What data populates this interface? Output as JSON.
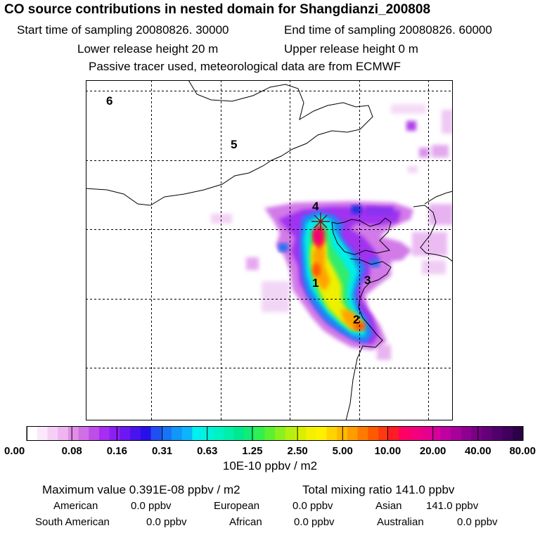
{
  "header": {
    "title": "CO  source contributions in nested domain for Shangdianzi_200808",
    "start_time": "Start time of sampling 20080826. 30000",
    "end_time": "End time of sampling 20080826. 60000",
    "lower_height": "Lower release height   20 m",
    "upper_height": "Upper release height    0 m",
    "note": "Passive tracer used, meteorological data are from ECMWF"
  },
  "chart_data": {
    "type": "heatmap",
    "title": "CO  source contributions in nested domain for Shangdianzi_200808",
    "region_labels": [
      "1",
      "2",
      "3",
      "4",
      "5",
      "6"
    ],
    "gridlines": "dashed",
    "receptor_marker": "star",
    "colorbar": {
      "labels": [
        "0.00",
        "0.08",
        "0.16",
        "0.31",
        "0.63",
        "1.25",
        "2.50",
        "5.00",
        "10.00",
        "20.00",
        "40.00",
        "80.00"
      ],
      "unit": "10E-10 ppbv / m2",
      "colors": [
        "#ffffff",
        "#fbe8fb",
        "#f5d0f5",
        "#eeb5f0",
        "#e08ee8",
        "#d06fe6",
        "#bf4ee8",
        "#a62ef0",
        "#8a20f4",
        "#6c18f2",
        "#4a12ee",
        "#2a10e8",
        "#1f4ff2",
        "#1874f6",
        "#1296f8",
        "#0eb4fa",
        "#00f0f0",
        "#00f2dc",
        "#00f2c4",
        "#00f0aa",
        "#00e890",
        "#12ec74",
        "#30f050",
        "#5cf030",
        "#8af020",
        "#b4f010",
        "#d8f000",
        "#f4f000",
        "#fff000",
        "#ffd400",
        "#ffb800",
        "#ff9c00",
        "#ff7a00",
        "#ff5a00",
        "#ff3a10",
        "#ff1a28",
        "#ff0064",
        "#f4007a",
        "#e8008c",
        "#d8009c",
        "#c000a0",
        "#a8009a",
        "#900090",
        "#780084",
        "#640078",
        "#50006a",
        "#3e005c",
        "#2c0048"
      ]
    }
  },
  "summary": {
    "max_label": "Maximum value  0.391E-08 ppbv / m2",
    "total_label": "Total mixing ratio      141.0 ppbv",
    "american": "American",
    "american_val": "0.0 ppbv",
    "european": "European",
    "european_val": "0.0 ppbv",
    "asian": "Asian",
    "asian_val": "141.0 ppbv",
    "south_american": "South American",
    "south_american_val": "0.0 ppbv",
    "african": "African",
    "african_val": "0.0 ppbv",
    "australian": "Australian",
    "australian_val": "0.0 ppbv"
  }
}
